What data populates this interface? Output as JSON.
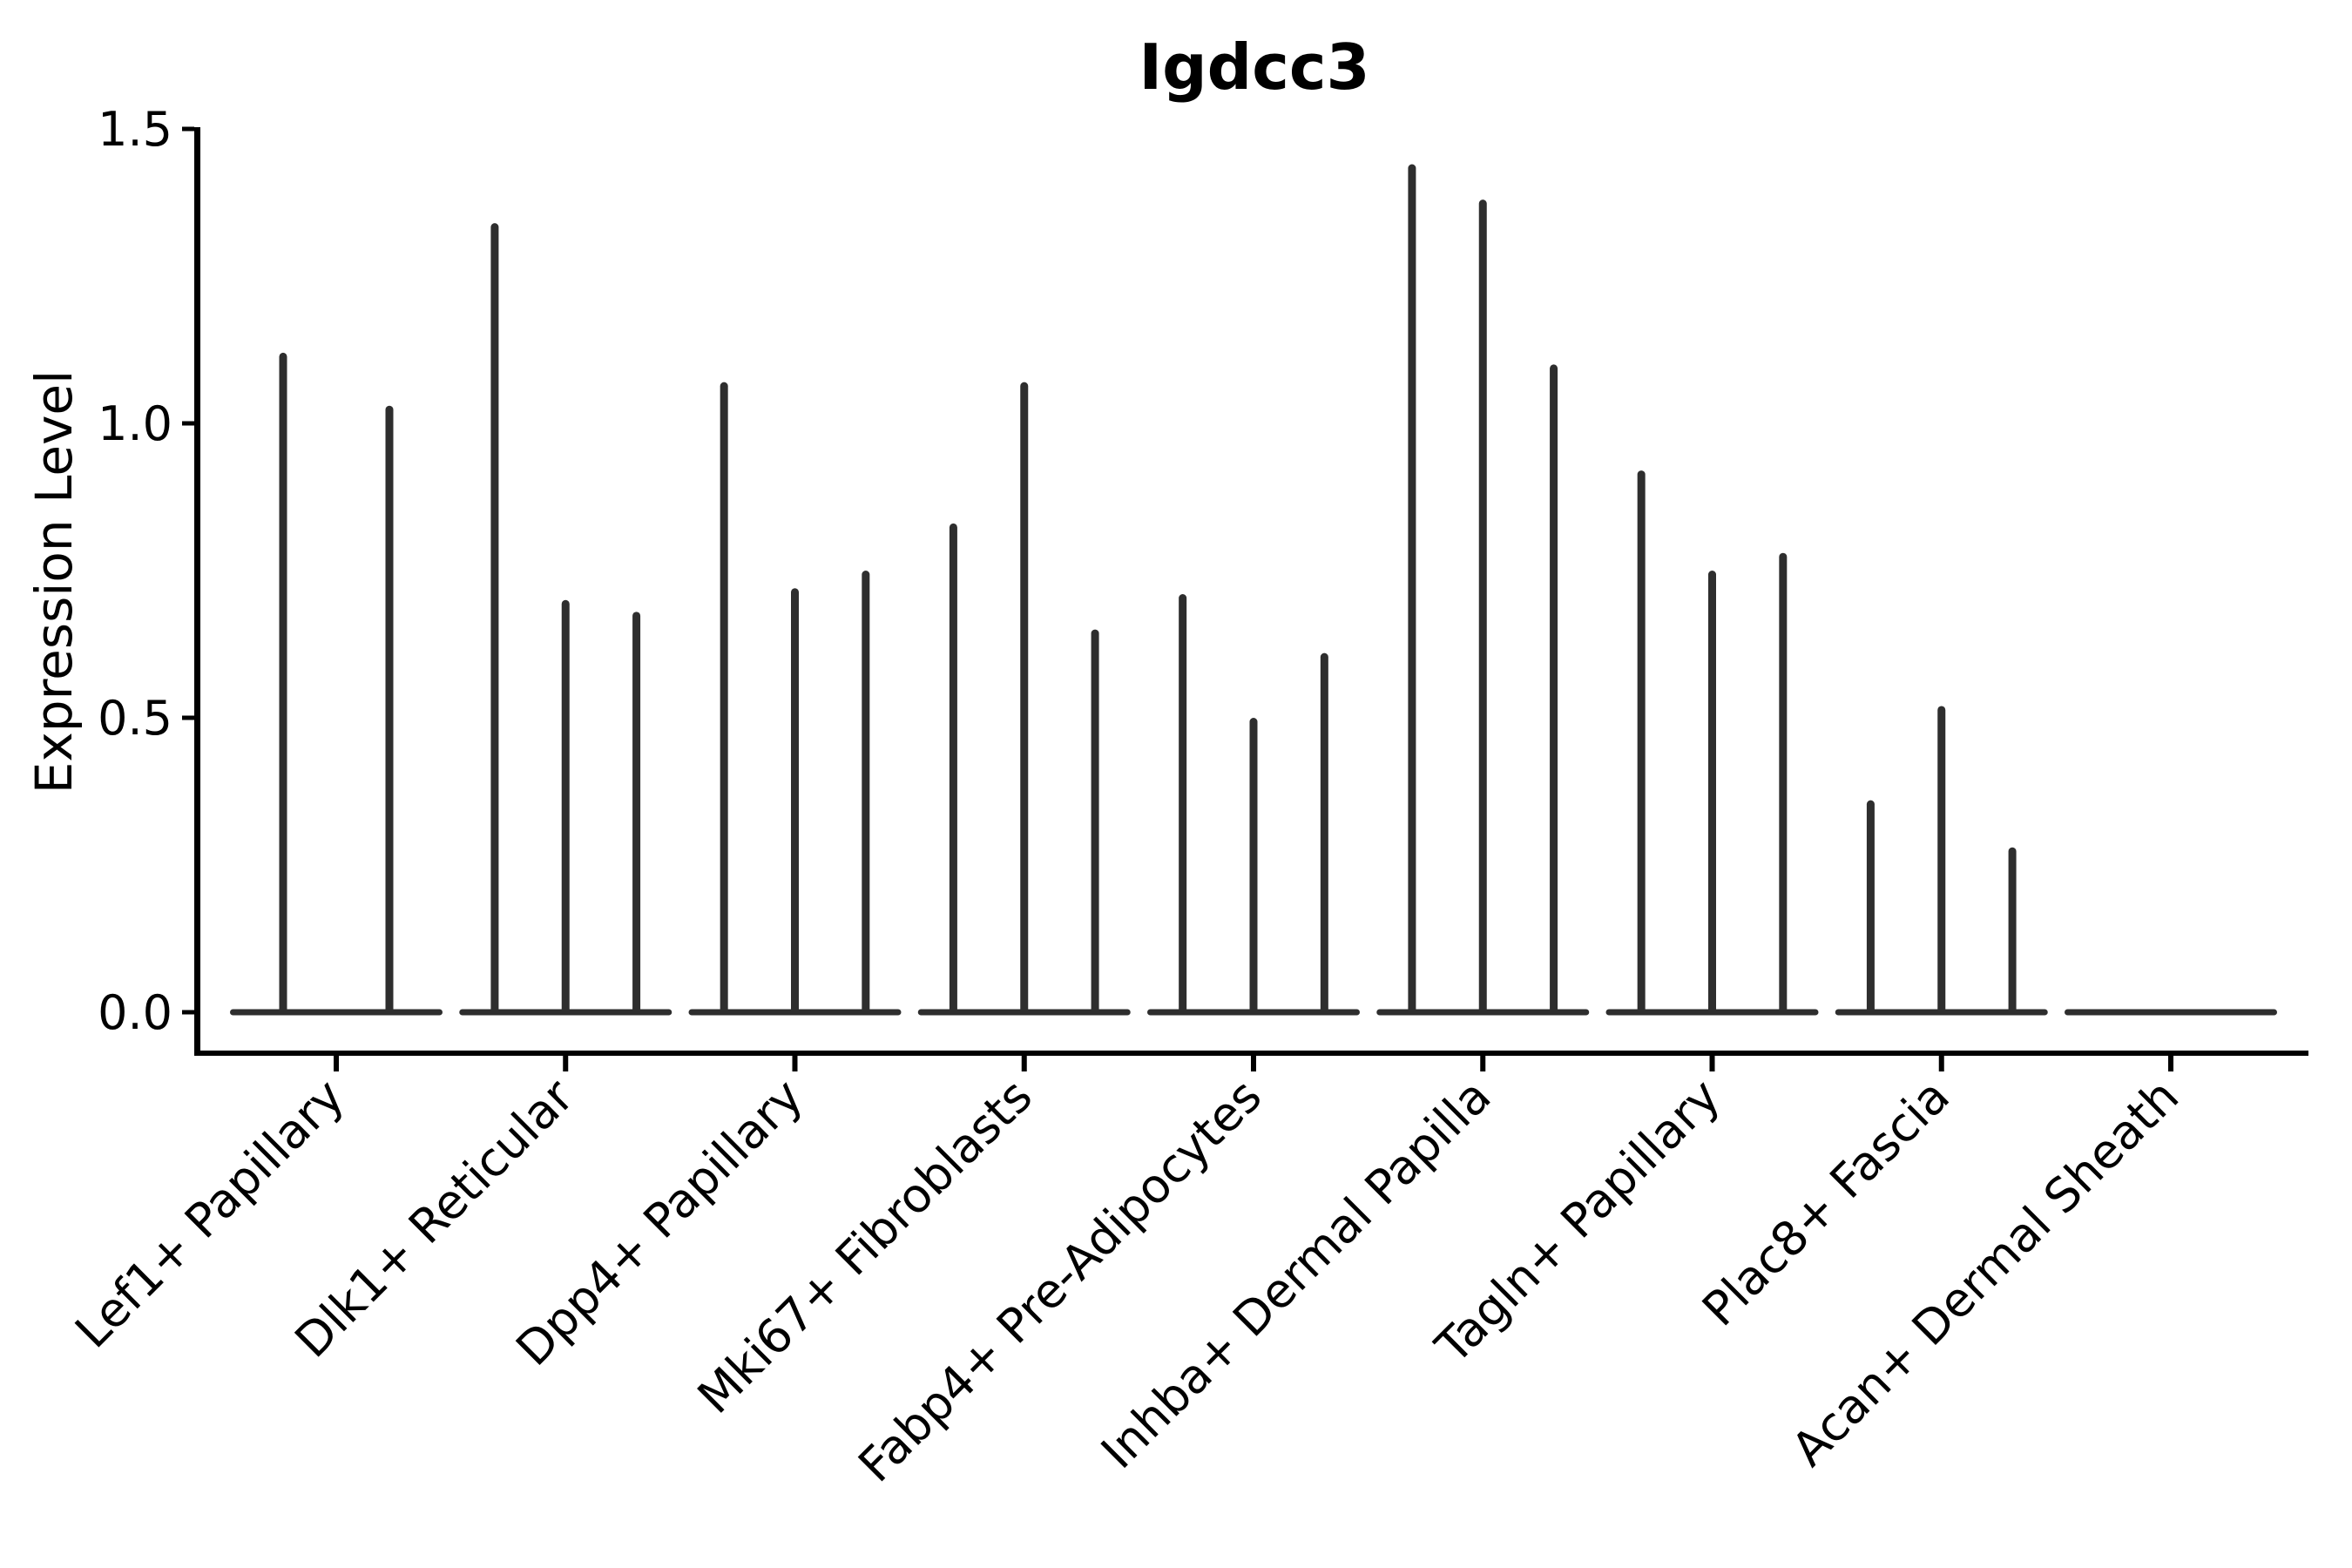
{
  "title": "Igdcc3",
  "ylabel": "Expression Level",
  "chart_data": {
    "type": "violin",
    "title": "Igdcc3",
    "xlabel": "",
    "ylabel": "Expression Level",
    "ylim": [
      0.0,
      1.5
    ],
    "y_ticks": [
      0.0,
      0.5,
      1.0,
      1.5
    ],
    "y_tick_labels": [
      "0.0",
      "0.5",
      "1.0",
      "1.5"
    ],
    "grid": "off",
    "legend": "none",
    "x_tick_rotation_deg": 45,
    "categories": [
      "Lef1+ Papillary",
      "Dlk1+ Reticular",
      "Dpp4+ Papillary",
      "Mki67+ Fibroblasts",
      "Fabp4+ Pre-Adipocytes",
      "Inhba+ Dermal Papilla",
      "Tagln+ Papillary",
      "Plac8+ Fascia",
      "Acan+ Dermal Sheath"
    ],
    "groups": [
      {
        "label": "Lef1+ Papillary",
        "violin_peaks": [
          1.12,
          1.03
        ]
      },
      {
        "label": "Dlk1+ Reticular",
        "violin_peaks": [
          1.34,
          0.7,
          0.68
        ]
      },
      {
        "label": "Dpp4+ Papillary",
        "violin_peaks": [
          1.07,
          0.72,
          0.75
        ]
      },
      {
        "label": "Mki67+ Fibroblasts",
        "violin_peaks": [
          0.83,
          1.07,
          0.65
        ]
      },
      {
        "label": "Fabp4+ Pre-Adipocytes",
        "violin_peaks": [
          0.71,
          0.5,
          0.61
        ]
      },
      {
        "label": "Inhba+ Dermal Papilla",
        "violin_peaks": [
          1.44,
          1.38,
          1.1
        ]
      },
      {
        "label": "Tagln+ Papillary",
        "violin_peaks": [
          0.92,
          0.75,
          0.78
        ]
      },
      {
        "label": "Plac8+ Fascia",
        "violin_peaks": [
          0.36,
          0.52,
          0.28
        ]
      },
      {
        "label": "Acan+ Dermal Sheath",
        "violin_peaks": []
      }
    ],
    "colors": {
      "violin": "#2e2e2e",
      "axis": "#000000",
      "text": "#000000",
      "background": "#ffffff"
    }
  }
}
